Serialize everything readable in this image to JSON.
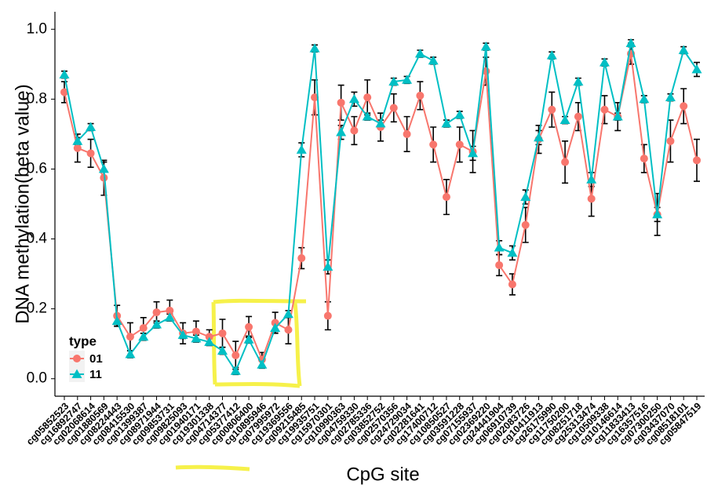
{
  "chart_data": {
    "type": "line",
    "xlabel": "CpG site",
    "ylabel": "DNA methylation(beta value)",
    "legend_title": "type",
    "legend_position": "bottom-left",
    "grid": false,
    "categories": [
      "cg05852523",
      "cg16892747",
      "cg02068614",
      "cg01880569",
      "cg08224443",
      "cg08415530",
      "cg01399387",
      "cg08971944",
      "cg09853731",
      "cg09825093",
      "cg01940171",
      "cg19301338",
      "cg04714377",
      "cg05377412",
      "cg00806400",
      "cg10895946",
      "cg07995972",
      "cg19369556",
      "cg09215485",
      "cg19935751",
      "cg15970301",
      "cg10990363",
      "cg04759330",
      "cg02785336",
      "cg03852752",
      "cg02570356",
      "cg24729034",
      "cg02281641",
      "cg17400712",
      "cg10850527",
      "cg03591228",
      "cg07155937",
      "cg02369220",
      "cg24441904",
      "cg06910739",
      "cg02083726",
      "cg10411913",
      "cg26175990",
      "cg11750200",
      "cg08251718",
      "cg25313474",
      "cg10509338",
      "cg10146614",
      "cg11833413",
      "cg16357516",
      "cg07300250",
      "cg03437070",
      "cg08518101",
      "cg05847519"
    ],
    "ylim": [
      -0.05,
      1.05
    ],
    "yticks": [
      {
        "value": 0,
        "label": "0.0"
      },
      0.2,
      0.4,
      0.6,
      0.8,
      {
        "value": 1,
        "label": "1.0"
      }
    ],
    "series": [
      {
        "name": "01",
        "color": "#f8766d",
        "marker": "circle",
        "values": [
          0.82,
          0.66,
          0.645,
          0.575,
          0.18,
          0.12,
          0.145,
          0.19,
          0.195,
          0.13,
          0.135,
          0.12,
          0.13,
          0.067,
          0.148,
          0.055,
          0.16,
          0.14,
          0.345,
          0.805,
          0.18,
          0.79,
          0.71,
          0.805,
          0.72,
          0.775,
          0.7,
          0.81,
          0.67,
          0.52,
          0.67,
          0.65,
          0.88,
          0.325,
          0.27,
          0.44,
          0.685,
          0.77,
          0.62,
          0.75,
          0.515,
          0.77,
          0.75,
          0.93,
          0.63,
          0.47,
          0.68,
          0.78,
          0.625
        ],
        "errors": [
          0.03,
          0.04,
          0.04,
          0.05,
          0.03,
          0.04,
          0.03,
          0.03,
          0.03,
          0.03,
          0.03,
          0.02,
          0.04,
          0.04,
          0.03,
          0.02,
          0.03,
          0.04,
          0.03,
          0.05,
          0.04,
          0.05,
          0.04,
          0.05,
          0.04,
          0.04,
          0.05,
          0.04,
          0.05,
          0.05,
          0.05,
          0.06,
          0.04,
          0.03,
          0.03,
          0.05,
          0.04,
          0.05,
          0.06,
          0.04,
          0.05,
          0.04,
          0.04,
          0.03,
          0.04,
          0.06,
          0.06,
          0.05,
          0.06
        ]
      },
      {
        "name": "11",
        "color": "#00bfc4",
        "marker": "triangle",
        "values": [
          0.87,
          0.68,
          0.72,
          0.6,
          0.165,
          0.07,
          0.12,
          0.155,
          0.175,
          0.125,
          0.115,
          0.105,
          0.08,
          0.022,
          0.112,
          0.04,
          0.145,
          0.185,
          0.655,
          0.945,
          0.32,
          0.705,
          0.8,
          0.75,
          0.73,
          0.85,
          0.855,
          0.93,
          0.91,
          0.73,
          0.755,
          0.645,
          0.95,
          0.375,
          0.36,
          0.52,
          0.69,
          0.925,
          0.74,
          0.85,
          0.57,
          0.905,
          0.75,
          0.96,
          0.8,
          0.47,
          0.805,
          0.94,
          0.885
        ],
        "errors": [
          0.01,
          0.01,
          0.01,
          0.02,
          0.01,
          0.01,
          0.01,
          0.01,
          0.01,
          0.01,
          0.01,
          0.01,
          0.01,
          0.01,
          0.01,
          0.01,
          0.01,
          0.01,
          0.02,
          0.01,
          0.02,
          0.02,
          0.02,
          0.01,
          0.01,
          0.01,
          0.01,
          0.01,
          0.01,
          0.01,
          0.01,
          0.02,
          0.01,
          0.02,
          0.02,
          0.02,
          0.02,
          0.01,
          0.01,
          0.01,
          0.02,
          0.01,
          0.01,
          0.01,
          0.01,
          0.02,
          0.01,
          0.01,
          0.02
        ]
      }
    ]
  }
}
